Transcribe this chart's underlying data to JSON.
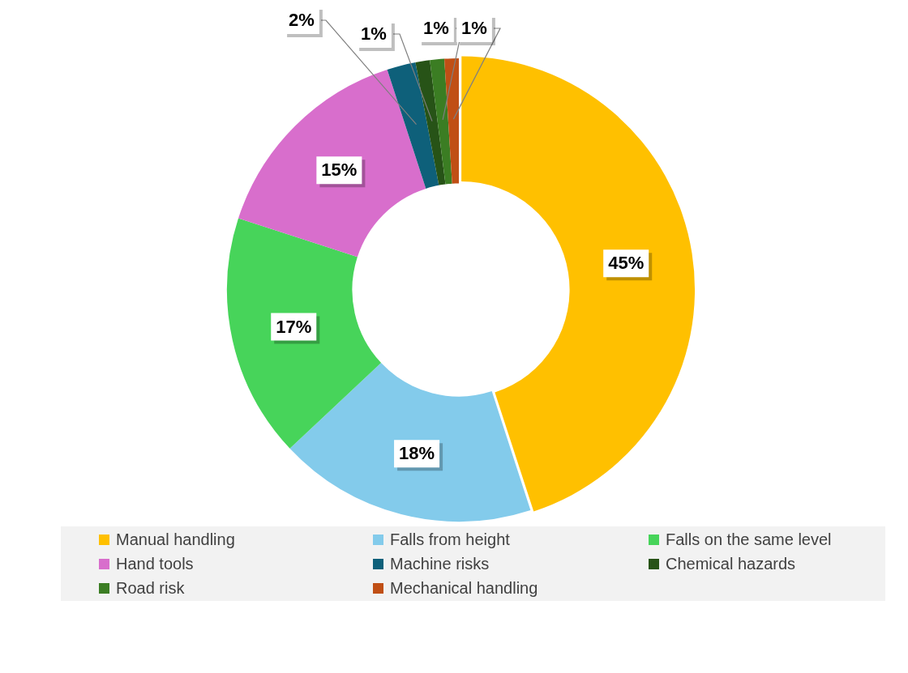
{
  "chart_data": {
    "type": "donut",
    "categories": [
      "Manual handling",
      "Falls from height",
      "Falls on the same level",
      "Hand tools",
      "Machine risks",
      "Chemical hazards",
      "Road risk",
      "Mechanical handling"
    ],
    "values": [
      45,
      18,
      17,
      15,
      2,
      1,
      1,
      1
    ],
    "colors": [
      "#ffc000",
      "#83cbeb",
      "#47d45a",
      "#d86ecc",
      "#0e607a",
      "#275317",
      "#3b7d23",
      "#c04f15"
    ],
    "value_labels": [
      "45%",
      "18%",
      "17%",
      "15%",
      "2%",
      "1%",
      "1%",
      "1%"
    ],
    "legend": "bottom"
  }
}
